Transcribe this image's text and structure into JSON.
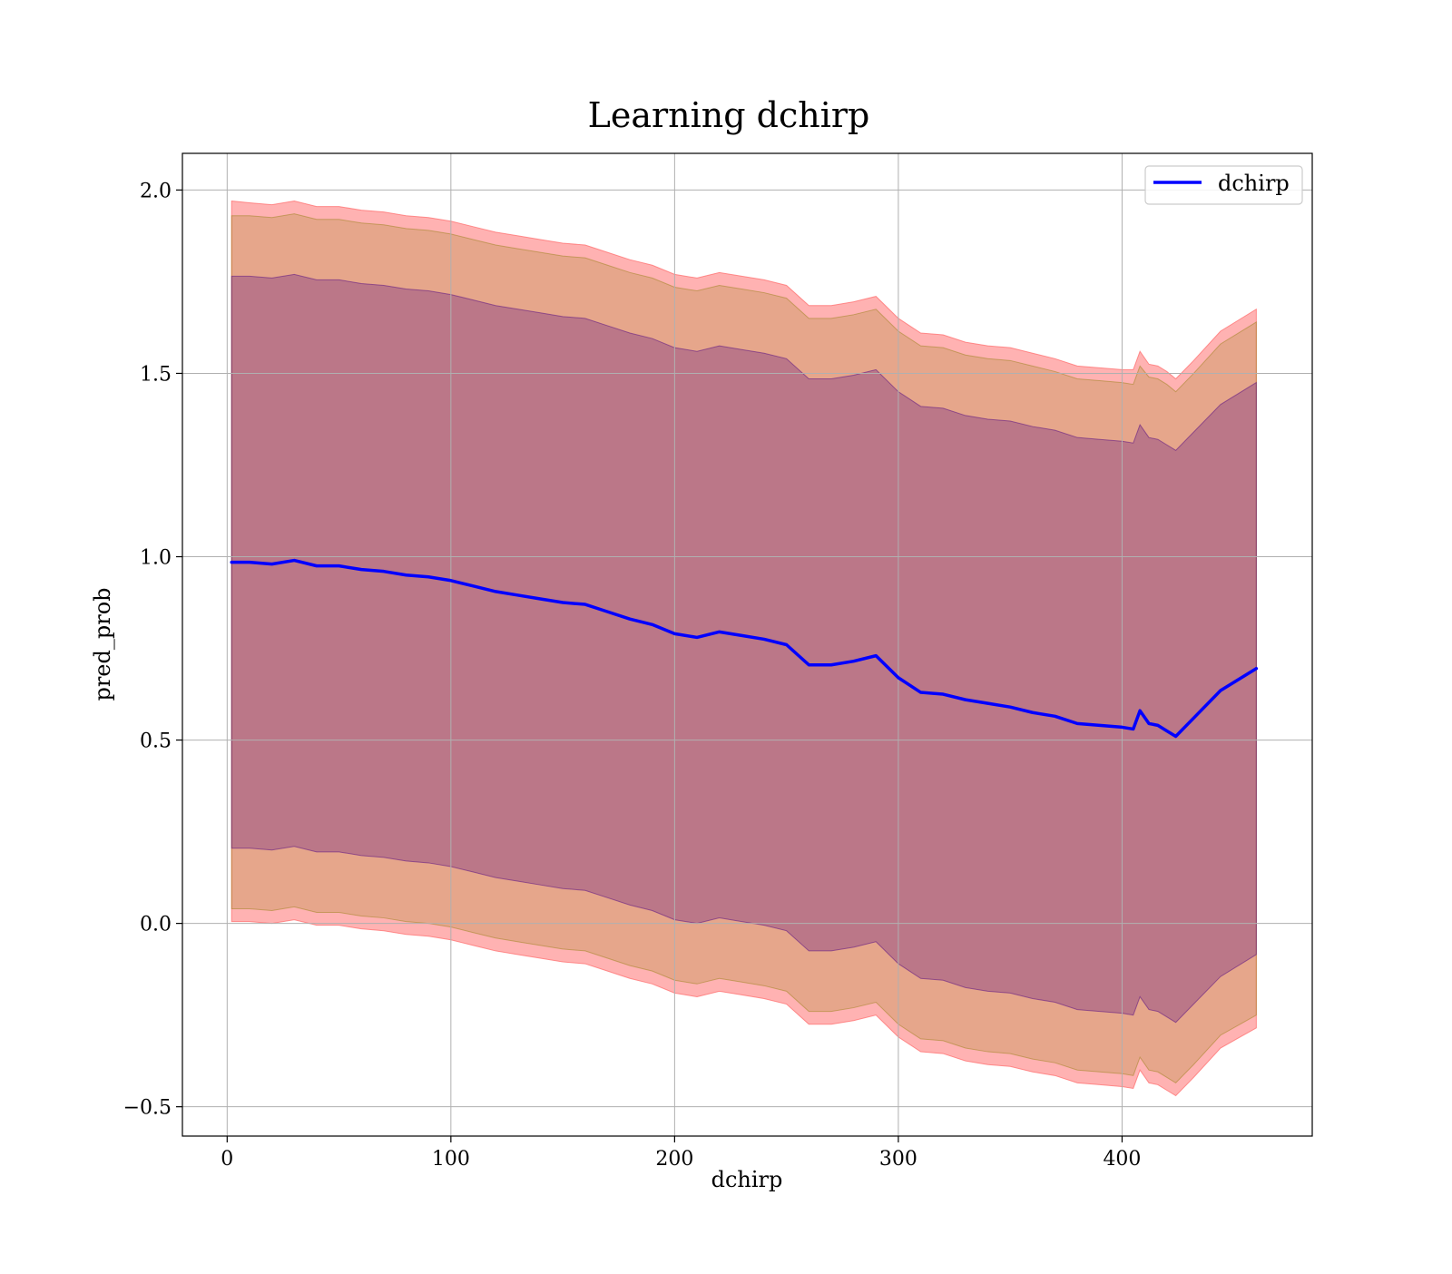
{
  "chart_data": {
    "type": "line",
    "title": "Learning dchirp",
    "xlabel": "dchirp",
    "ylabel": "pred_prob",
    "xlim": [
      -20,
      485
    ],
    "ylim": [
      -0.58,
      2.1
    ],
    "xticks": [
      0,
      100,
      200,
      300,
      400
    ],
    "xtick_labels": [
      "0",
      "100",
      "200",
      "300",
      "400"
    ],
    "yticks": [
      -0.5,
      0.0,
      0.5,
      1.0,
      1.5,
      2.0
    ],
    "ytick_labels": [
      "−0.5",
      "0.0",
      "0.5",
      "1.0",
      "1.5",
      "2.0"
    ],
    "grid": true,
    "legend": {
      "position": "top-right",
      "entries": [
        {
          "label": "dchirp",
          "color": "#0000ff"
        }
      ]
    },
    "series": [
      {
        "name": "dchirp",
        "color": "#0000ff",
        "x": [
          2,
          10,
          20,
          30,
          40,
          50,
          60,
          70,
          80,
          90,
          100,
          110,
          120,
          130,
          140,
          150,
          160,
          170,
          180,
          190,
          200,
          210,
          220,
          230,
          240,
          250,
          260,
          270,
          280,
          290,
          300,
          310,
          320,
          330,
          340,
          350,
          360,
          370,
          380,
          390,
          400,
          405,
          408,
          412,
          416,
          420,
          424,
          432,
          444,
          460
        ],
        "y": [
          0.985,
          0.985,
          0.98,
          0.99,
          0.975,
          0.975,
          0.965,
          0.96,
          0.95,
          0.945,
          0.935,
          0.92,
          0.905,
          0.895,
          0.885,
          0.875,
          0.87,
          0.85,
          0.83,
          0.815,
          0.79,
          0.78,
          0.795,
          0.785,
          0.775,
          0.76,
          0.705,
          0.705,
          0.715,
          0.73,
          0.67,
          0.63,
          0.625,
          0.61,
          0.6,
          0.59,
          0.575,
          0.565,
          0.545,
          0.54,
          0.535,
          0.53,
          0.58,
          0.545,
          0.54,
          0.525,
          0.51,
          0.56,
          0.635,
          0.695
        ]
      }
    ],
    "bands": [
      {
        "name": "outer",
        "fill": "#ff6666",
        "opacity": 0.5,
        "upper": [
          1.97,
          1.965,
          1.96,
          1.97,
          1.955,
          1.955,
          1.945,
          1.94,
          1.93,
          1.925,
          1.915,
          1.9,
          1.885,
          1.875,
          1.865,
          1.855,
          1.85,
          1.83,
          1.81,
          1.795,
          1.77,
          1.76,
          1.775,
          1.765,
          1.755,
          1.74,
          1.685,
          1.685,
          1.695,
          1.71,
          1.65,
          1.61,
          1.605,
          1.585,
          1.575,
          1.57,
          1.555,
          1.54,
          1.52,
          1.515,
          1.51,
          1.51,
          1.56,
          1.525,
          1.52,
          1.505,
          1.485,
          1.535,
          1.615,
          1.675
        ],
        "lower": [
          0.005,
          0.005,
          0.0,
          0.01,
          -0.005,
          -0.005,
          -0.015,
          -0.02,
          -0.03,
          -0.035,
          -0.045,
          -0.06,
          -0.075,
          -0.085,
          -0.095,
          -0.105,
          -0.11,
          -0.13,
          -0.15,
          -0.165,
          -0.19,
          -0.2,
          -0.185,
          -0.195,
          -0.205,
          -0.22,
          -0.275,
          -0.275,
          -0.265,
          -0.25,
          -0.31,
          -0.35,
          -0.355,
          -0.375,
          -0.385,
          -0.39,
          -0.405,
          -0.415,
          -0.435,
          -0.44,
          -0.445,
          -0.45,
          -0.4,
          -0.435,
          -0.44,
          -0.455,
          -0.47,
          -0.42,
          -0.34,
          -0.285
        ]
      },
      {
        "name": "middle",
        "fill": "#8b7a00",
        "opacity": 0.22,
        "upper": [
          1.93,
          1.93,
          1.925,
          1.935,
          1.92,
          1.92,
          1.91,
          1.905,
          1.895,
          1.89,
          1.88,
          1.865,
          1.85,
          1.84,
          1.83,
          1.82,
          1.815,
          1.795,
          1.775,
          1.76,
          1.735,
          1.725,
          1.74,
          1.73,
          1.72,
          1.705,
          1.65,
          1.65,
          1.66,
          1.675,
          1.615,
          1.575,
          1.57,
          1.55,
          1.54,
          1.535,
          1.52,
          1.505,
          1.485,
          1.48,
          1.475,
          1.47,
          1.52,
          1.49,
          1.485,
          1.47,
          1.45,
          1.5,
          1.58,
          1.64
        ],
        "lower": [
          0.04,
          0.04,
          0.035,
          0.045,
          0.03,
          0.03,
          0.02,
          0.015,
          0.005,
          0.0,
          -0.01,
          -0.025,
          -0.04,
          -0.05,
          -0.06,
          -0.07,
          -0.075,
          -0.095,
          -0.115,
          -0.13,
          -0.155,
          -0.165,
          -0.15,
          -0.16,
          -0.17,
          -0.185,
          -0.24,
          -0.24,
          -0.23,
          -0.215,
          -0.275,
          -0.315,
          -0.32,
          -0.34,
          -0.35,
          -0.355,
          -0.37,
          -0.38,
          -0.4,
          -0.405,
          -0.41,
          -0.415,
          -0.365,
          -0.4,
          -0.405,
          -0.42,
          -0.435,
          -0.385,
          -0.305,
          -0.25
        ]
      },
      {
        "name": "inner",
        "fill": "#4b0082",
        "opacity": 0.28,
        "upper": [
          1.765,
          1.765,
          1.76,
          1.77,
          1.755,
          1.755,
          1.745,
          1.74,
          1.73,
          1.725,
          1.715,
          1.7,
          1.685,
          1.675,
          1.665,
          1.655,
          1.65,
          1.63,
          1.61,
          1.595,
          1.57,
          1.56,
          1.575,
          1.565,
          1.555,
          1.54,
          1.485,
          1.485,
          1.495,
          1.51,
          1.45,
          1.41,
          1.405,
          1.385,
          1.375,
          1.37,
          1.355,
          1.345,
          1.325,
          1.32,
          1.315,
          1.31,
          1.36,
          1.325,
          1.32,
          1.305,
          1.29,
          1.34,
          1.415,
          1.475
        ],
        "lower": [
          0.205,
          0.205,
          0.2,
          0.21,
          0.195,
          0.195,
          0.185,
          0.18,
          0.17,
          0.165,
          0.155,
          0.14,
          0.125,
          0.115,
          0.105,
          0.095,
          0.09,
          0.07,
          0.05,
          0.035,
          0.01,
          0.0,
          0.015,
          0.005,
          -0.005,
          -0.02,
          -0.075,
          -0.075,
          -0.065,
          -0.05,
          -0.11,
          -0.15,
          -0.155,
          -0.175,
          -0.185,
          -0.19,
          -0.205,
          -0.215,
          -0.235,
          -0.24,
          -0.245,
          -0.25,
          -0.2,
          -0.235,
          -0.24,
          -0.255,
          -0.27,
          -0.22,
          -0.145,
          -0.085
        ]
      }
    ]
  }
}
